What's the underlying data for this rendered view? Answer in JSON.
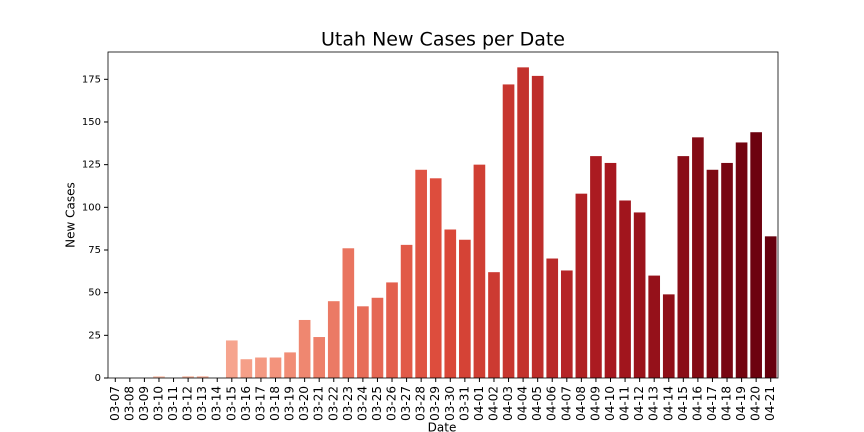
{
  "chart_data": {
    "type": "bar",
    "title": "Utah New Cases per Date",
    "x_label": "Date",
    "y_label": "New Cases",
    "categories": [
      "03-07",
      "03-08",
      "03-09",
      "03-10",
      "03-11",
      "03-12",
      "03-13",
      "03-14",
      "03-15",
      "03-16",
      "03-17",
      "03-18",
      "03-19",
      "03-20",
      "03-21",
      "03-22",
      "03-23",
      "03-24",
      "03-25",
      "03-26",
      "03-27",
      "03-28",
      "03-29",
      "03-30",
      "03-31",
      "04-01",
      "04-02",
      "04-03",
      "04-04",
      "04-05",
      "04-06",
      "04-07",
      "04-08",
      "04-09",
      "04-10",
      "04-11",
      "04-12",
      "04-13",
      "04-14",
      "04-15",
      "04-16",
      "04-17",
      "04-18",
      "04-19",
      "04-20",
      "04-21"
    ],
    "values": [
      0,
      0,
      0,
      1,
      0,
      1,
      1,
      0,
      22,
      11,
      12,
      12,
      15,
      34,
      24,
      45,
      76,
      42,
      47,
      56,
      78,
      122,
      117,
      87,
      81,
      125,
      62,
      172,
      182,
      177,
      70,
      63,
      108,
      130,
      126,
      104,
      97,
      60,
      49,
      130,
      141,
      122,
      126,
      138,
      144,
      83
    ],
    "palette": [
      "#fcd2c0",
      "#f3927a",
      "#dc4a3a",
      "#a8181f",
      "#67000d"
    ],
    "ylim": [
      0,
      191
    ],
    "yticks": [
      0,
      25,
      50,
      75,
      100,
      125,
      150,
      175
    ],
    "grid": false
  }
}
